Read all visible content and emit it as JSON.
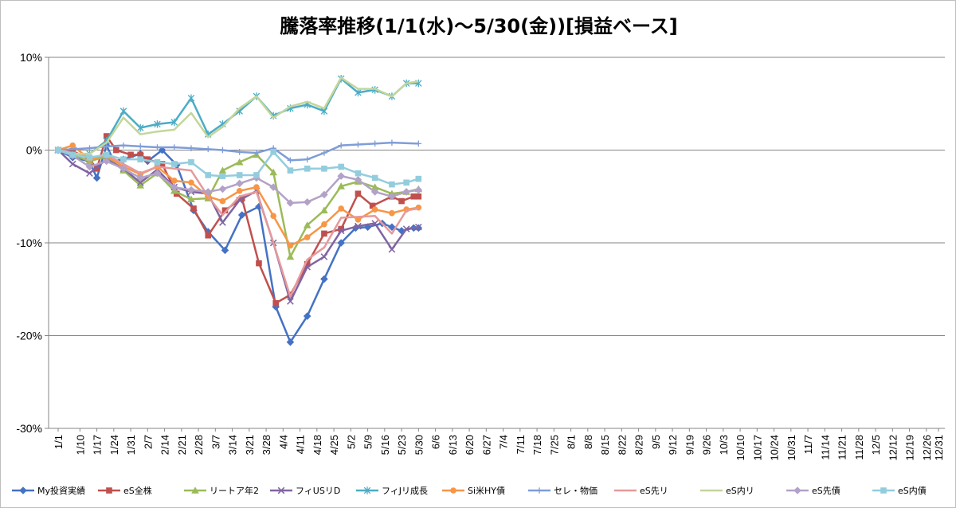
{
  "chart_data": {
    "type": "line",
    "title": "騰落率推移(1/1(水)～5/30(金))[損益ベース]",
    "ylim": [
      -0.3,
      0.1
    ],
    "yticks": [
      {
        "value": 0.1,
        "label": "10%"
      },
      {
        "value": 0.0,
        "label": "0%"
      },
      {
        "value": -0.1,
        "label": "-10%"
      },
      {
        "value": -0.2,
        "label": "-20%"
      },
      {
        "value": -0.3,
        "label": "-30%"
      }
    ],
    "grid": "horizontal",
    "legend_position": "bottom",
    "categories": [
      "1/1",
      "1/10",
      "1/17",
      "1/24",
      "1/31",
      "2/7",
      "2/14",
      "2/21",
      "2/28",
      "3/7",
      "3/14",
      "3/21",
      "3/28",
      "4/4",
      "4/11",
      "4/18",
      "4/25",
      "5/2",
      "5/9",
      "5/16",
      "5/23",
      "5/30",
      "6/6",
      "6/13",
      "6/20",
      "6/27",
      "7/4",
      "7/11",
      "7/18",
      "7/25",
      "8/1",
      "8/8",
      "8/15",
      "8/22",
      "8/29",
      "9/5",
      "9/12",
      "9/19",
      "9/26",
      "10/3",
      "10/10",
      "10/17",
      "10/24",
      "10/31",
      "11/7",
      "11/14",
      "11/21",
      "11/28",
      "12/5",
      "12/12",
      "12/19",
      "12/26",
      "12/31"
    ],
    "x": [
      0,
      9,
      16,
      23,
      30,
      37,
      44,
      51,
      58,
      65,
      72,
      79,
      86,
      93,
      100,
      107,
      114,
      121,
      128,
      135,
      142,
      149,
      156,
      163,
      170,
      177,
      184,
      191,
      198,
      205,
      212,
      219,
      226,
      233,
      240,
      247,
      254,
      261,
      268,
      275,
      282,
      289,
      296,
      303,
      310,
      317,
      324,
      331,
      338,
      345,
      352,
      359,
      364
    ],
    "series": [
      {
        "name": "My投資実績",
        "color": "#4472c4",
        "marker": "diamond",
        "points": [
          [
            0,
            0
          ],
          [
            6,
            -0.008
          ],
          [
            13,
            -0.012
          ],
          [
            16,
            -0.03
          ],
          [
            20,
            0.005
          ],
          [
            23,
            -0.012
          ],
          [
            27,
            -0.01
          ],
          [
            34,
            -0.004
          ],
          [
            37,
            -0.012
          ],
          [
            43,
            0
          ],
          [
            49,
            -0.016
          ],
          [
            56,
            -0.065
          ],
          [
            62,
            -0.088
          ],
          [
            69,
            -0.108
          ],
          [
            76,
            -0.07
          ],
          [
            83,
            -0.061
          ],
          [
            90,
            -0.169
          ],
          [
            96,
            -0.207
          ],
          [
            103,
            -0.179
          ],
          [
            110,
            -0.139
          ],
          [
            117,
            -0.1
          ],
          [
            123,
            -0.084
          ],
          [
            128,
            -0.083
          ],
          [
            134,
            -0.079
          ],
          [
            138,
            -0.083
          ],
          [
            142,
            -0.087
          ],
          [
            147,
            -0.084
          ],
          [
            149,
            -0.084
          ]
        ]
      },
      {
        "name": "eS全株",
        "color": "#c0504d",
        "marker": "square",
        "points": [
          [
            0,
            0
          ],
          [
            6,
            -0.001
          ],
          [
            13,
            -0.01
          ],
          [
            16,
            -0.02
          ],
          [
            20,
            0.015
          ],
          [
            24,
            0
          ],
          [
            30,
            -0.005
          ],
          [
            34,
            -0.005
          ],
          [
            37,
            -0.01
          ],
          [
            43,
            -0.015
          ],
          [
            49,
            -0.047
          ],
          [
            56,
            -0.063
          ],
          [
            62,
            -0.092
          ],
          [
            69,
            -0.065
          ],
          [
            76,
            -0.052
          ],
          [
            83,
            -0.122
          ],
          [
            90,
            -0.165
          ],
          [
            96,
            -0.156
          ],
          [
            103,
            -0.123
          ],
          [
            110,
            -0.09
          ],
          [
            117,
            -0.085
          ],
          [
            124,
            -0.047
          ],
          [
            130,
            -0.06
          ],
          [
            138,
            -0.05
          ],
          [
            142,
            -0.055
          ],
          [
            147,
            -0.05
          ],
          [
            149,
            -0.05
          ]
        ]
      },
      {
        "name": "リートア年2",
        "color": "#9bbb59",
        "marker": "triangle",
        "points": [
          [
            0,
            0
          ],
          [
            6,
            -0.005
          ],
          [
            13,
            -0.012
          ],
          [
            20,
            -0.007
          ],
          [
            27,
            -0.022
          ],
          [
            34,
            -0.038
          ],
          [
            41,
            -0.025
          ],
          [
            48,
            -0.044
          ],
          [
            55,
            -0.053
          ],
          [
            62,
            -0.052
          ],
          [
            68,
            -0.022
          ],
          [
            75,
            -0.013
          ],
          [
            82,
            -0.005
          ],
          [
            89,
            -0.024
          ],
          [
            96,
            -0.115
          ],
          [
            103,
            -0.081
          ],
          [
            110,
            -0.065
          ],
          [
            117,
            -0.039
          ],
          [
            124,
            -0.034
          ],
          [
            131,
            -0.04
          ],
          [
            138,
            -0.047
          ],
          [
            144,
            -0.045
          ],
          [
            149,
            -0.042
          ]
        ]
      },
      {
        "name": "フィUSリD",
        "color": "#8064a2",
        "marker": "x",
        "points": [
          [
            0,
            0
          ],
          [
            6,
            -0.015
          ],
          [
            13,
            -0.025
          ],
          [
            20,
            -0.01
          ],
          [
            27,
            -0.02
          ],
          [
            34,
            -0.035
          ],
          [
            41,
            -0.021
          ],
          [
            48,
            -0.04
          ],
          [
            55,
            -0.045
          ],
          [
            62,
            -0.047
          ],
          [
            68,
            -0.078
          ],
          [
            75,
            -0.054
          ],
          [
            82,
            -0.044
          ],
          [
            89,
            -0.1
          ],
          [
            96,
            -0.163
          ],
          [
            103,
            -0.126
          ],
          [
            110,
            -0.115
          ],
          [
            117,
            -0.087
          ],
          [
            124,
            -0.082
          ],
          [
            131,
            -0.079
          ],
          [
            138,
            -0.107
          ],
          [
            144,
            -0.085
          ],
          [
            149,
            -0.083
          ]
        ]
      },
      {
        "name": "フィJリ成長",
        "color": "#4bacc6",
        "marker": "star",
        "points": [
          [
            0,
            0
          ],
          [
            6,
            -0.005
          ],
          [
            13,
            -0.004
          ],
          [
            20,
            0.01
          ],
          [
            27,
            0.042
          ],
          [
            34,
            0.024
          ],
          [
            41,
            0.028
          ],
          [
            48,
            0.03
          ],
          [
            55,
            0.056
          ],
          [
            62,
            0.017
          ],
          [
            68,
            0.028
          ],
          [
            75,
            0.042
          ],
          [
            82,
            0.058
          ],
          [
            89,
            0.037
          ],
          [
            96,
            0.045
          ],
          [
            103,
            0.049
          ],
          [
            110,
            0.042
          ],
          [
            117,
            0.077
          ],
          [
            124,
            0.062
          ],
          [
            131,
            0.065
          ],
          [
            138,
            0.058
          ],
          [
            144,
            0.072
          ],
          [
            149,
            0.072
          ]
        ]
      },
      {
        "name": "Si米HY債",
        "color": "#f79646",
        "marker": "circle",
        "points": [
          [
            0,
            0
          ],
          [
            6,
            0.005
          ],
          [
            13,
            -0.01
          ],
          [
            20,
            -0.006
          ],
          [
            27,
            -0.018
          ],
          [
            34,
            -0.026
          ],
          [
            41,
            -0.018
          ],
          [
            48,
            -0.033
          ],
          [
            55,
            -0.035
          ],
          [
            62,
            -0.05
          ],
          [
            68,
            -0.055
          ],
          [
            75,
            -0.044
          ],
          [
            82,
            -0.04
          ],
          [
            89,
            -0.071
          ],
          [
            96,
            -0.103
          ],
          [
            103,
            -0.094
          ],
          [
            110,
            -0.08
          ],
          [
            117,
            -0.063
          ],
          [
            124,
            -0.075
          ],
          [
            131,
            -0.064
          ],
          [
            138,
            -0.068
          ],
          [
            144,
            -0.064
          ],
          [
            149,
            -0.062
          ]
        ]
      },
      {
        "name": "セレ・物価",
        "color": "#7f9dd8",
        "marker": "plus",
        "points": [
          [
            0,
            0
          ],
          [
            13,
            0.002
          ],
          [
            20,
            0.004
          ],
          [
            27,
            0.005
          ],
          [
            34,
            0.004
          ],
          [
            41,
            0.003
          ],
          [
            48,
            0.003
          ],
          [
            55,
            0.002
          ],
          [
            62,
            0.001
          ],
          [
            68,
            0
          ],
          [
            75,
            -0.002
          ],
          [
            82,
            -0.003
          ],
          [
            89,
            0.002
          ],
          [
            96,
            -0.011
          ],
          [
            103,
            -0.01
          ],
          [
            110,
            -0.003
          ],
          [
            117,
            0.005
          ],
          [
            124,
            0.006
          ],
          [
            131,
            0.007
          ],
          [
            138,
            0.008
          ],
          [
            149,
            0.007
          ]
        ]
      },
      {
        "name": "eS先リ",
        "color": "#e6999b",
        "marker": "none",
        "points": [
          [
            0,
            0
          ],
          [
            6,
            -0.003
          ],
          [
            13,
            -0.008
          ],
          [
            20,
            -0.005
          ],
          [
            27,
            -0.015
          ],
          [
            34,
            -0.025
          ],
          [
            41,
            -0.018
          ],
          [
            48,
            -0.02
          ],
          [
            55,
            -0.022
          ],
          [
            62,
            -0.05
          ],
          [
            68,
            -0.07
          ],
          [
            75,
            -0.05
          ],
          [
            82,
            -0.045
          ],
          [
            89,
            -0.1
          ],
          [
            96,
            -0.158
          ],
          [
            103,
            -0.118
          ],
          [
            110,
            -0.105
          ],
          [
            117,
            -0.073
          ],
          [
            124,
            -0.072
          ],
          [
            131,
            -0.071
          ],
          [
            138,
            -0.09
          ],
          [
            144,
            -0.065
          ],
          [
            149,
            -0.063
          ]
        ]
      },
      {
        "name": "eS内リ",
        "color": "#c3d69b",
        "marker": "none",
        "points": [
          [
            0,
            0
          ],
          [
            6,
            -0.004
          ],
          [
            13,
            -0.004
          ],
          [
            20,
            0.008
          ],
          [
            27,
            0.035
          ],
          [
            34,
            0.017
          ],
          [
            41,
            0.02
          ],
          [
            48,
            0.022
          ],
          [
            55,
            0.04
          ],
          [
            62,
            0.014
          ],
          [
            68,
            0.025
          ],
          [
            75,
            0.045
          ],
          [
            82,
            0.058
          ],
          [
            89,
            0.035
          ],
          [
            96,
            0.047
          ],
          [
            103,
            0.052
          ],
          [
            110,
            0.045
          ],
          [
            117,
            0.078
          ],
          [
            124,
            0.066
          ],
          [
            131,
            0.066
          ],
          [
            138,
            0.058
          ],
          [
            144,
            0.072
          ],
          [
            149,
            0.074
          ]
        ]
      },
      {
        "name": "eS先債",
        "color": "#b3a2c7",
        "marker": "diamond",
        "points": [
          [
            0,
            0
          ],
          [
            6,
            -0.006
          ],
          [
            13,
            -0.018
          ],
          [
            20,
            -0.012
          ],
          [
            27,
            -0.02
          ],
          [
            34,
            -0.03
          ],
          [
            41,
            -0.025
          ],
          [
            48,
            -0.04
          ],
          [
            55,
            -0.043
          ],
          [
            62,
            -0.045
          ],
          [
            68,
            -0.042
          ],
          [
            75,
            -0.036
          ],
          [
            82,
            -0.03
          ],
          [
            89,
            -0.04
          ],
          [
            96,
            -0.057
          ],
          [
            103,
            -0.056
          ],
          [
            110,
            -0.048
          ],
          [
            117,
            -0.028
          ],
          [
            124,
            -0.032
          ],
          [
            131,
            -0.045
          ],
          [
            138,
            -0.05
          ],
          [
            144,
            -0.045
          ],
          [
            149,
            -0.043
          ]
        ]
      },
      {
        "name": "eS内債",
        "color": "#93cddd",
        "marker": "square",
        "points": [
          [
            0,
            0
          ],
          [
            6,
            -0.005
          ],
          [
            13,
            -0.008
          ],
          [
            20,
            -0.005
          ],
          [
            27,
            -0.01
          ],
          [
            34,
            -0.01
          ],
          [
            41,
            -0.013
          ],
          [
            48,
            -0.015
          ],
          [
            55,
            -0.013
          ],
          [
            62,
            -0.027
          ],
          [
            68,
            -0.028
          ],
          [
            75,
            -0.027
          ],
          [
            82,
            -0.027
          ],
          [
            89,
            -0.002
          ],
          [
            96,
            -0.022
          ],
          [
            103,
            -0.02
          ],
          [
            110,
            -0.02
          ],
          [
            117,
            -0.018
          ],
          [
            124,
            -0.025
          ],
          [
            131,
            -0.03
          ],
          [
            138,
            -0.037
          ],
          [
            144,
            -0.035
          ],
          [
            149,
            -0.031
          ]
        ]
      }
    ]
  }
}
